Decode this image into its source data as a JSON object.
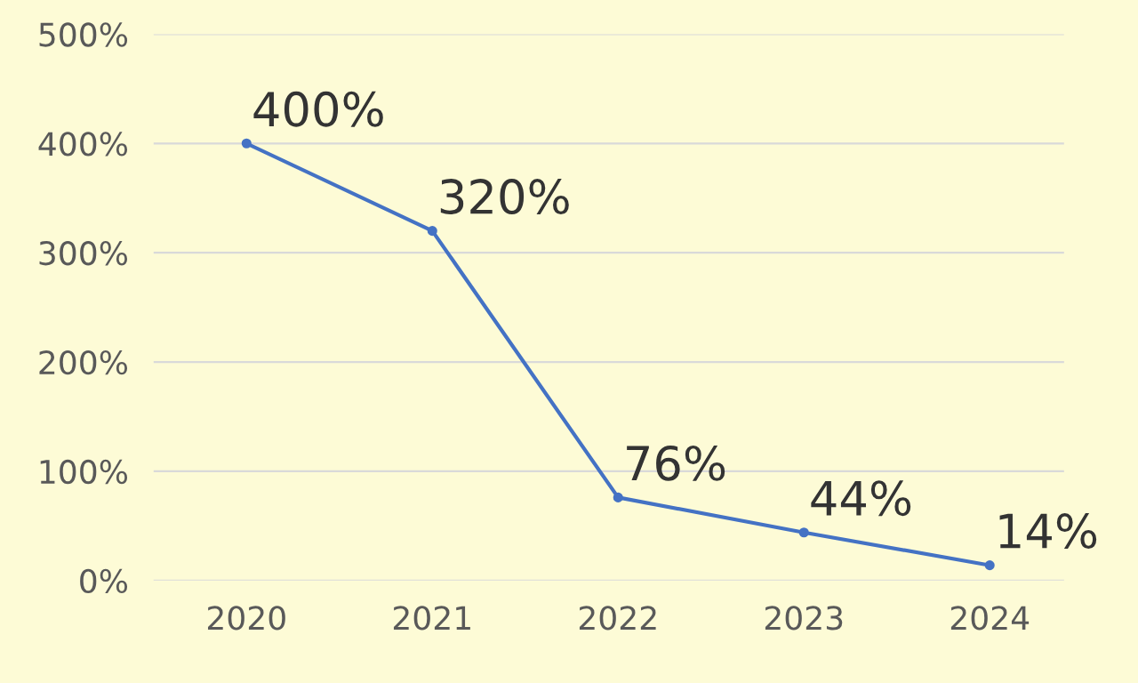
{
  "chart_data": {
    "type": "line",
    "categories": [
      "2020",
      "2021",
      "2022",
      "2023",
      "2024"
    ],
    "series": [
      {
        "color": "#4472c4",
        "values": [
          400,
          320,
          76,
          44,
          14
        ],
        "value_labels": [
          "400%",
          "320%",
          "76%",
          "44%",
          "14%"
        ]
      }
    ],
    "ylim": [
      0,
      500
    ],
    "yticks": [
      {
        "value": 0,
        "label": "0%"
      },
      {
        "value": 100,
        "label": "100%"
      },
      {
        "value": 200,
        "label": "200%"
      },
      {
        "value": 300,
        "label": "300%"
      },
      {
        "value": 400,
        "label": "400%"
      },
      {
        "value": 500,
        "label": "500%"
      }
    ],
    "grid": "y",
    "marker": "circle",
    "line_style": "solid"
  }
}
